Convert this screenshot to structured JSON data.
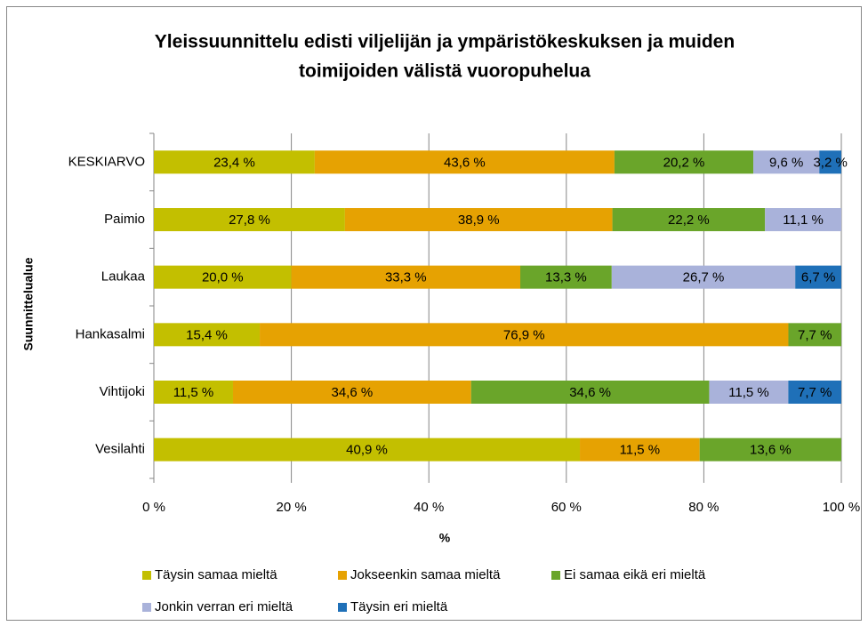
{
  "chart_data": {
    "type": "bar",
    "orientation": "horizontal",
    "stacked": "percent",
    "title": [
      "Yleissuunnittelu edisti viljelijän ja ympäristökeskuksen ja muiden",
      "toimijoiden välistä vuoropuhelua"
    ],
    "y_label": "Suunnittelualue",
    "x_label": "%",
    "categories": [
      "KESKIARVO",
      "Paimio",
      "Laukaa",
      "Hankasalmi",
      "Vihtijoki",
      "Vesilahti"
    ],
    "series": [
      {
        "name": "Täysin samaa mieltä",
        "color": "#c3bf00",
        "values": [
          23.4,
          27.8,
          20.0,
          15.4,
          11.5,
          40.9
        ],
        "value_labels": [
          "23,4 %",
          "27,8 %",
          "20,0 %",
          "15,4 %",
          "11,5 %",
          "40,9 %"
        ]
      },
      {
        "name": "Jokseenkin samaa mieltä",
        "color": "#e6a202",
        "values": [
          43.6,
          38.9,
          33.3,
          76.9,
          34.6,
          11.5
        ],
        "value_labels": [
          "43,6 %",
          "38,9 %",
          "33,3 %",
          "76,9 %",
          "34,6 %",
          "11,5 %"
        ]
      },
      {
        "name": "Ei samaa eikä eri mieltä",
        "color": "#6aa52a",
        "values": [
          20.2,
          22.2,
          13.3,
          7.7,
          34.6,
          13.6
        ],
        "value_labels": [
          "20,2 %",
          "22,2 %",
          "13,3 %",
          "7,7 %",
          "34,6 %",
          "13,6 %"
        ]
      },
      {
        "name": "Jonkin verran eri mieltä",
        "color": "#a9b2da",
        "values": [
          9.6,
          11.1,
          26.7,
          null,
          11.5,
          null
        ],
        "value_labels": [
          "9,6 %",
          "11,1 %",
          "26,7 %",
          null,
          "11,5 %",
          null
        ]
      },
      {
        "name": "Täysin eri mieltä",
        "color": "#1f70b8",
        "values": [
          3.2,
          null,
          6.7,
          null,
          7.7,
          null
        ],
        "value_labels": [
          "3,2 %",
          null,
          "6,7 %",
          null,
          "7,7 %",
          null
        ]
      }
    ],
    "xlim": [
      0,
      100
    ],
    "xticks": [
      {
        "value": 0,
        "label": "0 %"
      },
      {
        "value": 20,
        "label": "20 %"
      },
      {
        "value": 40,
        "label": "40 %"
      },
      {
        "value": 60,
        "label": "60 %"
      },
      {
        "value": 80,
        "label": "80 %"
      },
      {
        "value": 100,
        "label": "100 %"
      }
    ],
    "grid": true,
    "legend": "bottom"
  }
}
